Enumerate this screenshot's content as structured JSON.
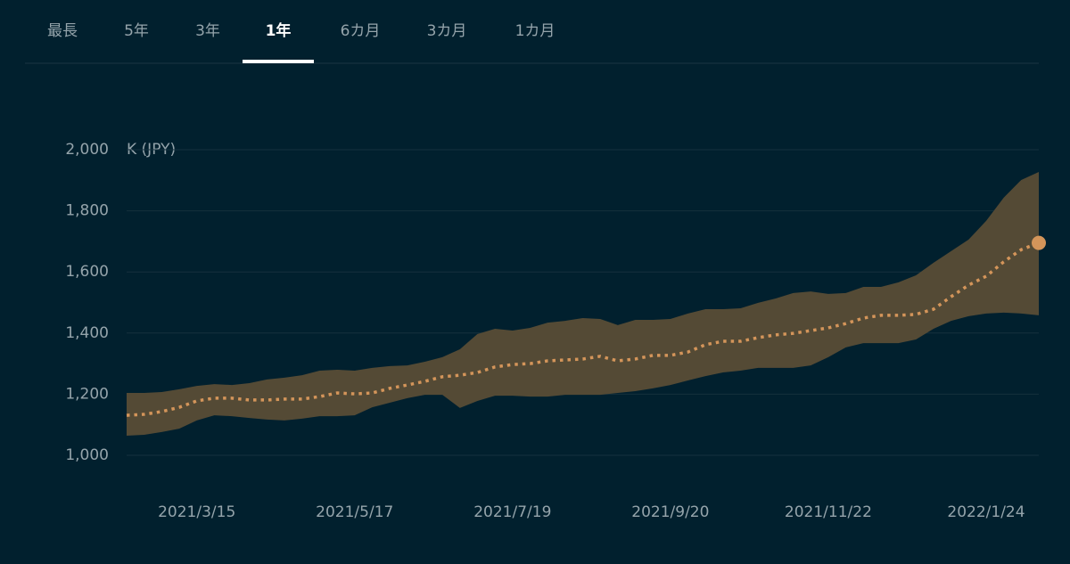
{
  "tabs": [
    {
      "label": "最長",
      "active": false
    },
    {
      "label": "5年",
      "active": false
    },
    {
      "label": "3年",
      "active": false
    },
    {
      "label": "1年",
      "active": true
    },
    {
      "label": "6カ月",
      "active": false
    },
    {
      "label": "3カ月",
      "active": false
    },
    {
      "label": "1カ月",
      "active": false
    }
  ],
  "chart_data": {
    "type": "line",
    "y_label": "K (JPY)",
    "categories": [
      null,
      null,
      null,
      null,
      "2021/3/15",
      null,
      null,
      null,
      null,
      null,
      null,
      null,
      null,
      "2021/5/17",
      null,
      null,
      null,
      null,
      null,
      null,
      null,
      null,
      "2021/7/19",
      null,
      null,
      null,
      null,
      null,
      null,
      null,
      null,
      "2021/9/20",
      null,
      null,
      null,
      null,
      null,
      null,
      null,
      null,
      "2021/11/22",
      null,
      null,
      null,
      null,
      null,
      null,
      null,
      null,
      "2022/1/24",
      null,
      null,
      null
    ],
    "series": [
      {
        "color": "#d4955a",
        "dash": "dotted",
        "marker_last": true,
        "values": [
          1131,
          1134,
          1143,
          1157,
          1178,
          1187,
          1187,
          1181,
          1181,
          1184,
          1184,
          1192,
          1204,
          1201,
          1204,
          1219,
          1230,
          1242,
          1257,
          1262,
          1271,
          1289,
          1297,
          1300,
          1309,
          1312,
          1315,
          1324,
          1309,
          1315,
          1327,
          1327,
          1338,
          1362,
          1373,
          1373,
          1385,
          1394,
          1399,
          1408,
          1417,
          1431,
          1449,
          1458,
          1458,
          1461,
          1478,
          1519,
          1557,
          1586,
          1633,
          1673,
          1695
        ]
      }
    ],
    "band": {
      "color": "#544a35",
      "upper": [
        1204,
        1204,
        1207,
        1216,
        1227,
        1233,
        1230,
        1236,
        1248,
        1254,
        1262,
        1277,
        1280,
        1277,
        1286,
        1292,
        1294,
        1306,
        1321,
        1347,
        1397,
        1414,
        1408,
        1417,
        1434,
        1440,
        1449,
        1446,
        1426,
        1443,
        1443,
        1446,
        1464,
        1478,
        1478,
        1481,
        1499,
        1513,
        1531,
        1536,
        1528,
        1531,
        1551,
        1551,
        1566,
        1589,
        1630,
        1668,
        1706,
        1767,
        1843,
        1901,
        1927
      ],
      "lower": [
        1064,
        1067,
        1076,
        1087,
        1114,
        1131,
        1128,
        1122,
        1117,
        1114,
        1120,
        1128,
        1128,
        1131,
        1157,
        1172,
        1187,
        1198,
        1198,
        1155,
        1178,
        1195,
        1195,
        1192,
        1192,
        1198,
        1198,
        1198,
        1204,
        1210,
        1219,
        1230,
        1245,
        1259,
        1271,
        1277,
        1286,
        1286,
        1286,
        1294,
        1321,
        1353,
        1367,
        1367,
        1367,
        1379,
        1414,
        1440,
        1455,
        1464,
        1467,
        1464,
        1458
      ]
    },
    "ylim": [
      1000,
      2000
    ],
    "yticks": [
      {
        "value": 1000,
        "label": "1,000"
      },
      {
        "value": 1200,
        "label": "1,200"
      },
      {
        "value": 1400,
        "label": "1,400"
      },
      {
        "value": 1600,
        "label": "1,600"
      },
      {
        "value": 1800,
        "label": "1,800"
      },
      {
        "value": 2000,
        "label": "2,000"
      }
    ],
    "grid": true
  }
}
